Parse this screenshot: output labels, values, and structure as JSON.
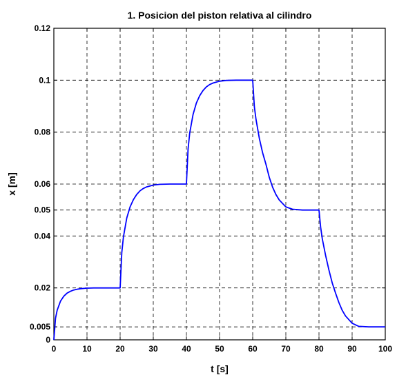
{
  "chart_data": {
    "type": "line",
    "title": "1. Posicion del piston relativa al cilindro",
    "xlabel": "t [s]",
    "ylabel": "x [m]",
    "xlim": [
      0,
      100
    ],
    "ylim": [
      0,
      0.12
    ],
    "grid": true,
    "x_ticks": [
      0,
      10,
      20,
      30,
      40,
      50,
      60,
      70,
      80,
      90,
      100
    ],
    "x_tick_labels": [
      "0",
      "10",
      "20",
      "30",
      "40",
      "50",
      "60",
      "70",
      "80",
      "90",
      "100"
    ],
    "y_ticks": [
      0,
      0.005,
      0.02,
      0.04,
      0.05,
      0.06,
      0.08,
      0.1,
      0.12
    ],
    "y_tick_labels": [
      "0",
      "0.005",
      "0.02",
      "0.04",
      "0.05",
      "0.06",
      "0.08",
      "0.1",
      "0.12"
    ],
    "series_color": "#0000ff",
    "series": [
      {
        "x": [
          0,
          0.5,
          1,
          2,
          3,
          4,
          5,
          6,
          7,
          8,
          10,
          12,
          15,
          18,
          20,
          20.01,
          20.5,
          21,
          22,
          23,
          24,
          25,
          26,
          27,
          28,
          30,
          32,
          35,
          38,
          40,
          40.01,
          40.5,
          41,
          42,
          43,
          44,
          45,
          46,
          47,
          48,
          50,
          52,
          55,
          58,
          60,
          60.01,
          60.5,
          61,
          62,
          63,
          64,
          65,
          66,
          67,
          68,
          70,
          72,
          75,
          78,
          80,
          80.01,
          80.5,
          81,
          82,
          83,
          84,
          85,
          86,
          87,
          88,
          90,
          92,
          95,
          98,
          100
        ],
        "y": [
          0,
          0.0083,
          0.0114,
          0.0149,
          0.0168,
          0.018,
          0.0187,
          0.0192,
          0.0195,
          0.0197,
          0.0199,
          0.02,
          0.02,
          0.02,
          0.02,
          0.02,
          0.0336,
          0.0397,
          0.0469,
          0.0512,
          0.054,
          0.056,
          0.0574,
          0.0583,
          0.0589,
          0.0596,
          0.0599,
          0.06,
          0.06,
          0.06,
          0.06,
          0.0735,
          0.0797,
          0.0868,
          0.0912,
          0.094,
          0.096,
          0.0974,
          0.0983,
          0.0989,
          0.0996,
          0.0999,
          0.1,
          0.1,
          0.1,
          0.1,
          0.0898,
          0.0849,
          0.0776,
          0.072,
          0.0676,
          0.0626,
          0.0588,
          0.056,
          0.0539,
          0.0512,
          0.0503,
          0.05,
          0.05,
          0.05,
          0.05,
          0.0434,
          0.0389,
          0.0325,
          0.0269,
          0.0219,
          0.018,
          0.0144,
          0.0114,
          0.0092,
          0.0064,
          0.0052,
          0.005,
          0.005,
          0.005
        ]
      }
    ]
  }
}
